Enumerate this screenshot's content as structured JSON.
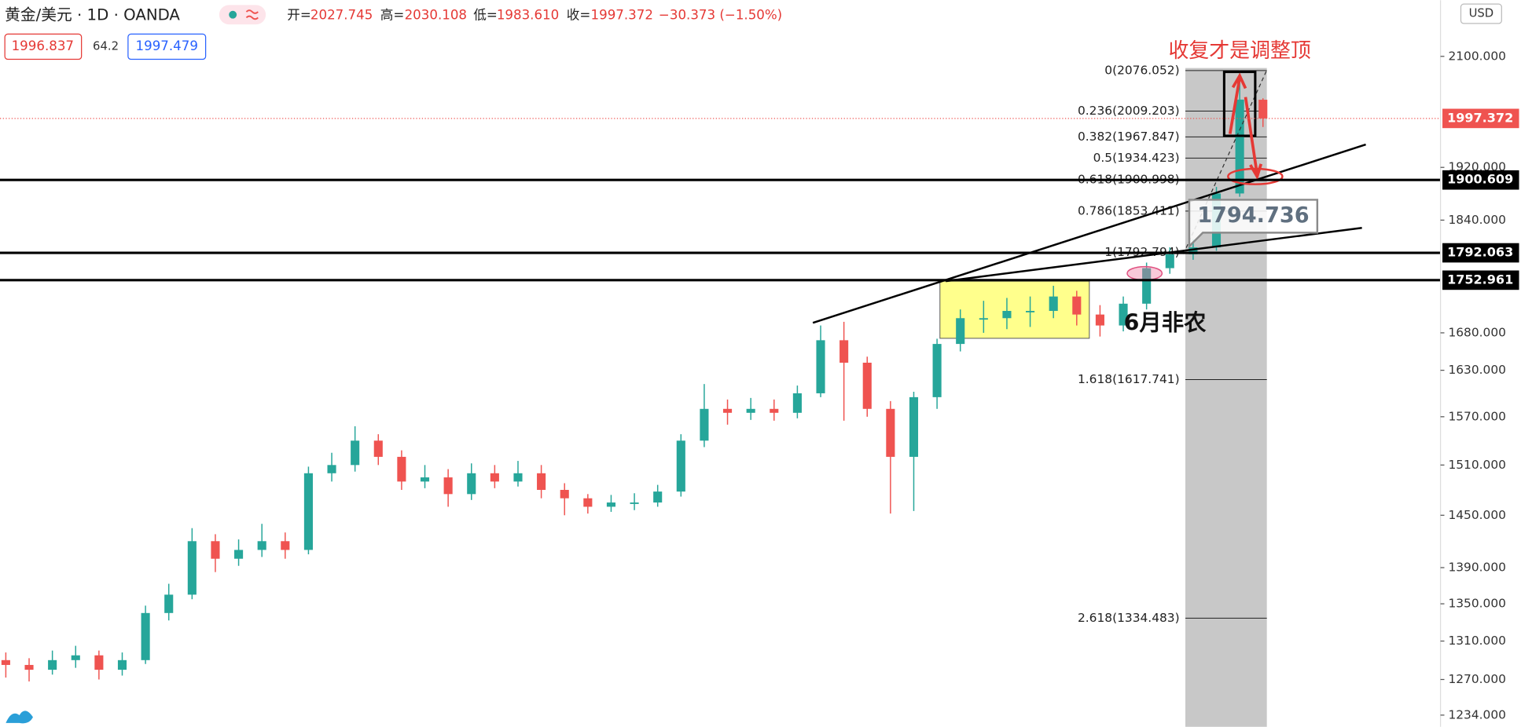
{
  "header": {
    "symbol": "黄金/美元 · 1D · OANDA",
    "ohlc": [
      {
        "label": "开=",
        "value": "2027.745"
      },
      {
        "label": "高=",
        "value": "2030.108"
      },
      {
        "label": "低=",
        "value": "1983.610"
      },
      {
        "label": "收=",
        "value": "1997.372"
      }
    ],
    "change": "−30.373 (−1.50%)",
    "bid": "1996.837",
    "spread": "64.2",
    "ask": "1997.479"
  },
  "chart_data": {
    "type": "candlestick",
    "currency": "USD",
    "log": true,
    "up_color": "#26a69a",
    "down_color": "#ef5350",
    "open": [
      1290,
      1285,
      1280,
      1290,
      1295,
      1280,
      1290,
      1340,
      1360,
      1420,
      1400,
      1410,
      1420,
      1410,
      1500,
      1510,
      1540,
      1520,
      1490,
      1495,
      1475,
      1500,
      1490,
      1500,
      1480,
      1470,
      1460,
      1465,
      1465,
      1478,
      1540,
      1580,
      1575,
      1580,
      1575,
      1600,
      1670,
      1640,
      1580,
      1520,
      1595,
      1665,
      1700,
      1700,
      1710,
      1710,
      1730,
      1705,
      1690,
      1720,
      1770,
      1790,
      1800,
      1880,
      2027.745
    ],
    "high": [
      1298,
      1292,
      1300,
      1305,
      1300,
      1298,
      1348,
      1372,
      1435,
      1428,
      1422,
      1440,
      1430,
      1508,
      1525,
      1558,
      1548,
      1528,
      1510,
      1505,
      1512,
      1510,
      1515,
      1510,
      1488,
      1475,
      1474,
      1476,
      1486,
      1548,
      1612,
      1592,
      1594,
      1592,
      1610,
      1690,
      1695,
      1648,
      1590,
      1602,
      1672,
      1712,
      1724,
      1728,
      1730,
      1745,
      1738,
      1718,
      1730,
      1778,
      1800,
      1812,
      1890,
      2076.052,
      2030.108
    ],
    "low": [
      1272,
      1268,
      1275,
      1282,
      1270,
      1274,
      1286,
      1332,
      1355,
      1385,
      1392,
      1402,
      1400,
      1405,
      1490,
      1502,
      1510,
      1480,
      1482,
      1460,
      1468,
      1482,
      1484,
      1470,
      1450,
      1452,
      1454,
      1456,
      1460,
      1472,
      1532,
      1560,
      1566,
      1565,
      1568,
      1595,
      1565,
      1570,
      1452,
      1455,
      1580,
      1655,
      1680,
      1685,
      1688,
      1700,
      1690,
      1675,
      1682,
      1712,
      1762,
      1782,
      1795,
      1875,
      1983.61
    ],
    "close": [
      1285,
      1280,
      1290,
      1295,
      1280,
      1290,
      1340,
      1360,
      1420,
      1400,
      1410,
      1420,
      1410,
      1500,
      1510,
      1540,
      1520,
      1490,
      1495,
      1475,
      1500,
      1490,
      1500,
      1480,
      1470,
      1460,
      1465,
      1465,
      1478,
      1540,
      1580,
      1575,
      1580,
      1575,
      1600,
      1670,
      1640,
      1580,
      1520,
      1595,
      1665,
      1700,
      1700,
      1710,
      1710,
      1730,
      1705,
      1690,
      1720,
      1770,
      1790,
      1800,
      1880,
      2028,
      1997.372
    ],
    "ylim": [
      1222.4,
      2197.4
    ],
    "yticks": [
      {
        "value": 1234,
        "label": "1234.000"
      },
      {
        "value": 1270,
        "label": "1270.000"
      },
      {
        "value": 1310,
        "label": "1310.000"
      },
      {
        "value": 1350,
        "label": "1350.000"
      },
      {
        "value": 1390,
        "label": "1390.000"
      },
      {
        "value": 1450,
        "label": "1450.000"
      },
      {
        "value": 1510,
        "label": "1510.000"
      },
      {
        "value": 1570,
        "label": "1570.000"
      },
      {
        "value": 1630,
        "label": "1630.000"
      },
      {
        "value": 1680,
        "label": "1680.000"
      },
      {
        "value": 1840,
        "label": "1840.000"
      },
      {
        "value": 1920,
        "label": "1920.000"
      },
      {
        "value": 2100,
        "label": "2100.000"
      }
    ],
    "fib_levels": [
      {
        "value": 2076.052,
        "label": "0(2076.052)"
      },
      {
        "value": 2009.203,
        "label": "0.236(2009.203)"
      },
      {
        "value": 1967.847,
        "label": "0.382(1967.847)"
      },
      {
        "value": 1934.423,
        "label": "0.5(1934.423)"
      },
      {
        "value": 1900.998,
        "label": "0.618(1900.998)"
      },
      {
        "value": 1853.411,
        "label": "0.786(1853.411)"
      },
      {
        "value": 1792.794,
        "label": "1(1792.794)"
      },
      {
        "value": 1617.741,
        "label": "1.618(1617.741)"
      },
      {
        "value": 1334.483,
        "label": "2.618(1334.483)"
      }
    ],
    "last_price": 1997.372,
    "price_lines": [
      1900.609,
      1792.063,
      1752.961
    ],
    "annotations": {
      "top_note": "收复才是调整顶",
      "event": "6月非农",
      "price_note": 1794.736
    }
  }
}
